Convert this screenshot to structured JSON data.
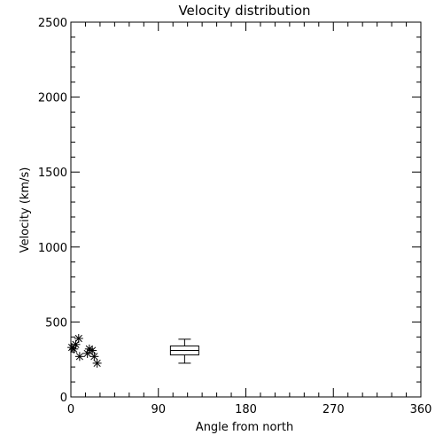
{
  "chart_data": {
    "type": "scatter",
    "title": "Velocity distribution",
    "xlabel": "Angle from north",
    "ylabel": "Velocity (km/s)",
    "xlim": [
      0,
      360
    ],
    "ylim": [
      0,
      2500
    ],
    "xticks": [
      0,
      90,
      180,
      270,
      360
    ],
    "yticks": [
      0,
      500,
      1000,
      1500,
      2000,
      2500
    ],
    "grid": false,
    "points": [
      {
        "x": 1,
        "y": 330
      },
      {
        "x": 3,
        "y": 320
      },
      {
        "x": 5,
        "y": 350
      },
      {
        "x": 8,
        "y": 390
      },
      {
        "x": 9,
        "y": 270
      },
      {
        "x": 17,
        "y": 290
      },
      {
        "x": 19,
        "y": 320
      },
      {
        "x": 22,
        "y": 310
      },
      {
        "x": 24,
        "y": 270
      },
      {
        "x": 27,
        "y": 225
      }
    ],
    "boxplot": {
      "x": 117,
      "whisker_low": 225,
      "q1": 280,
      "median": 310,
      "q3": 340,
      "whisker_high": 385
    }
  }
}
